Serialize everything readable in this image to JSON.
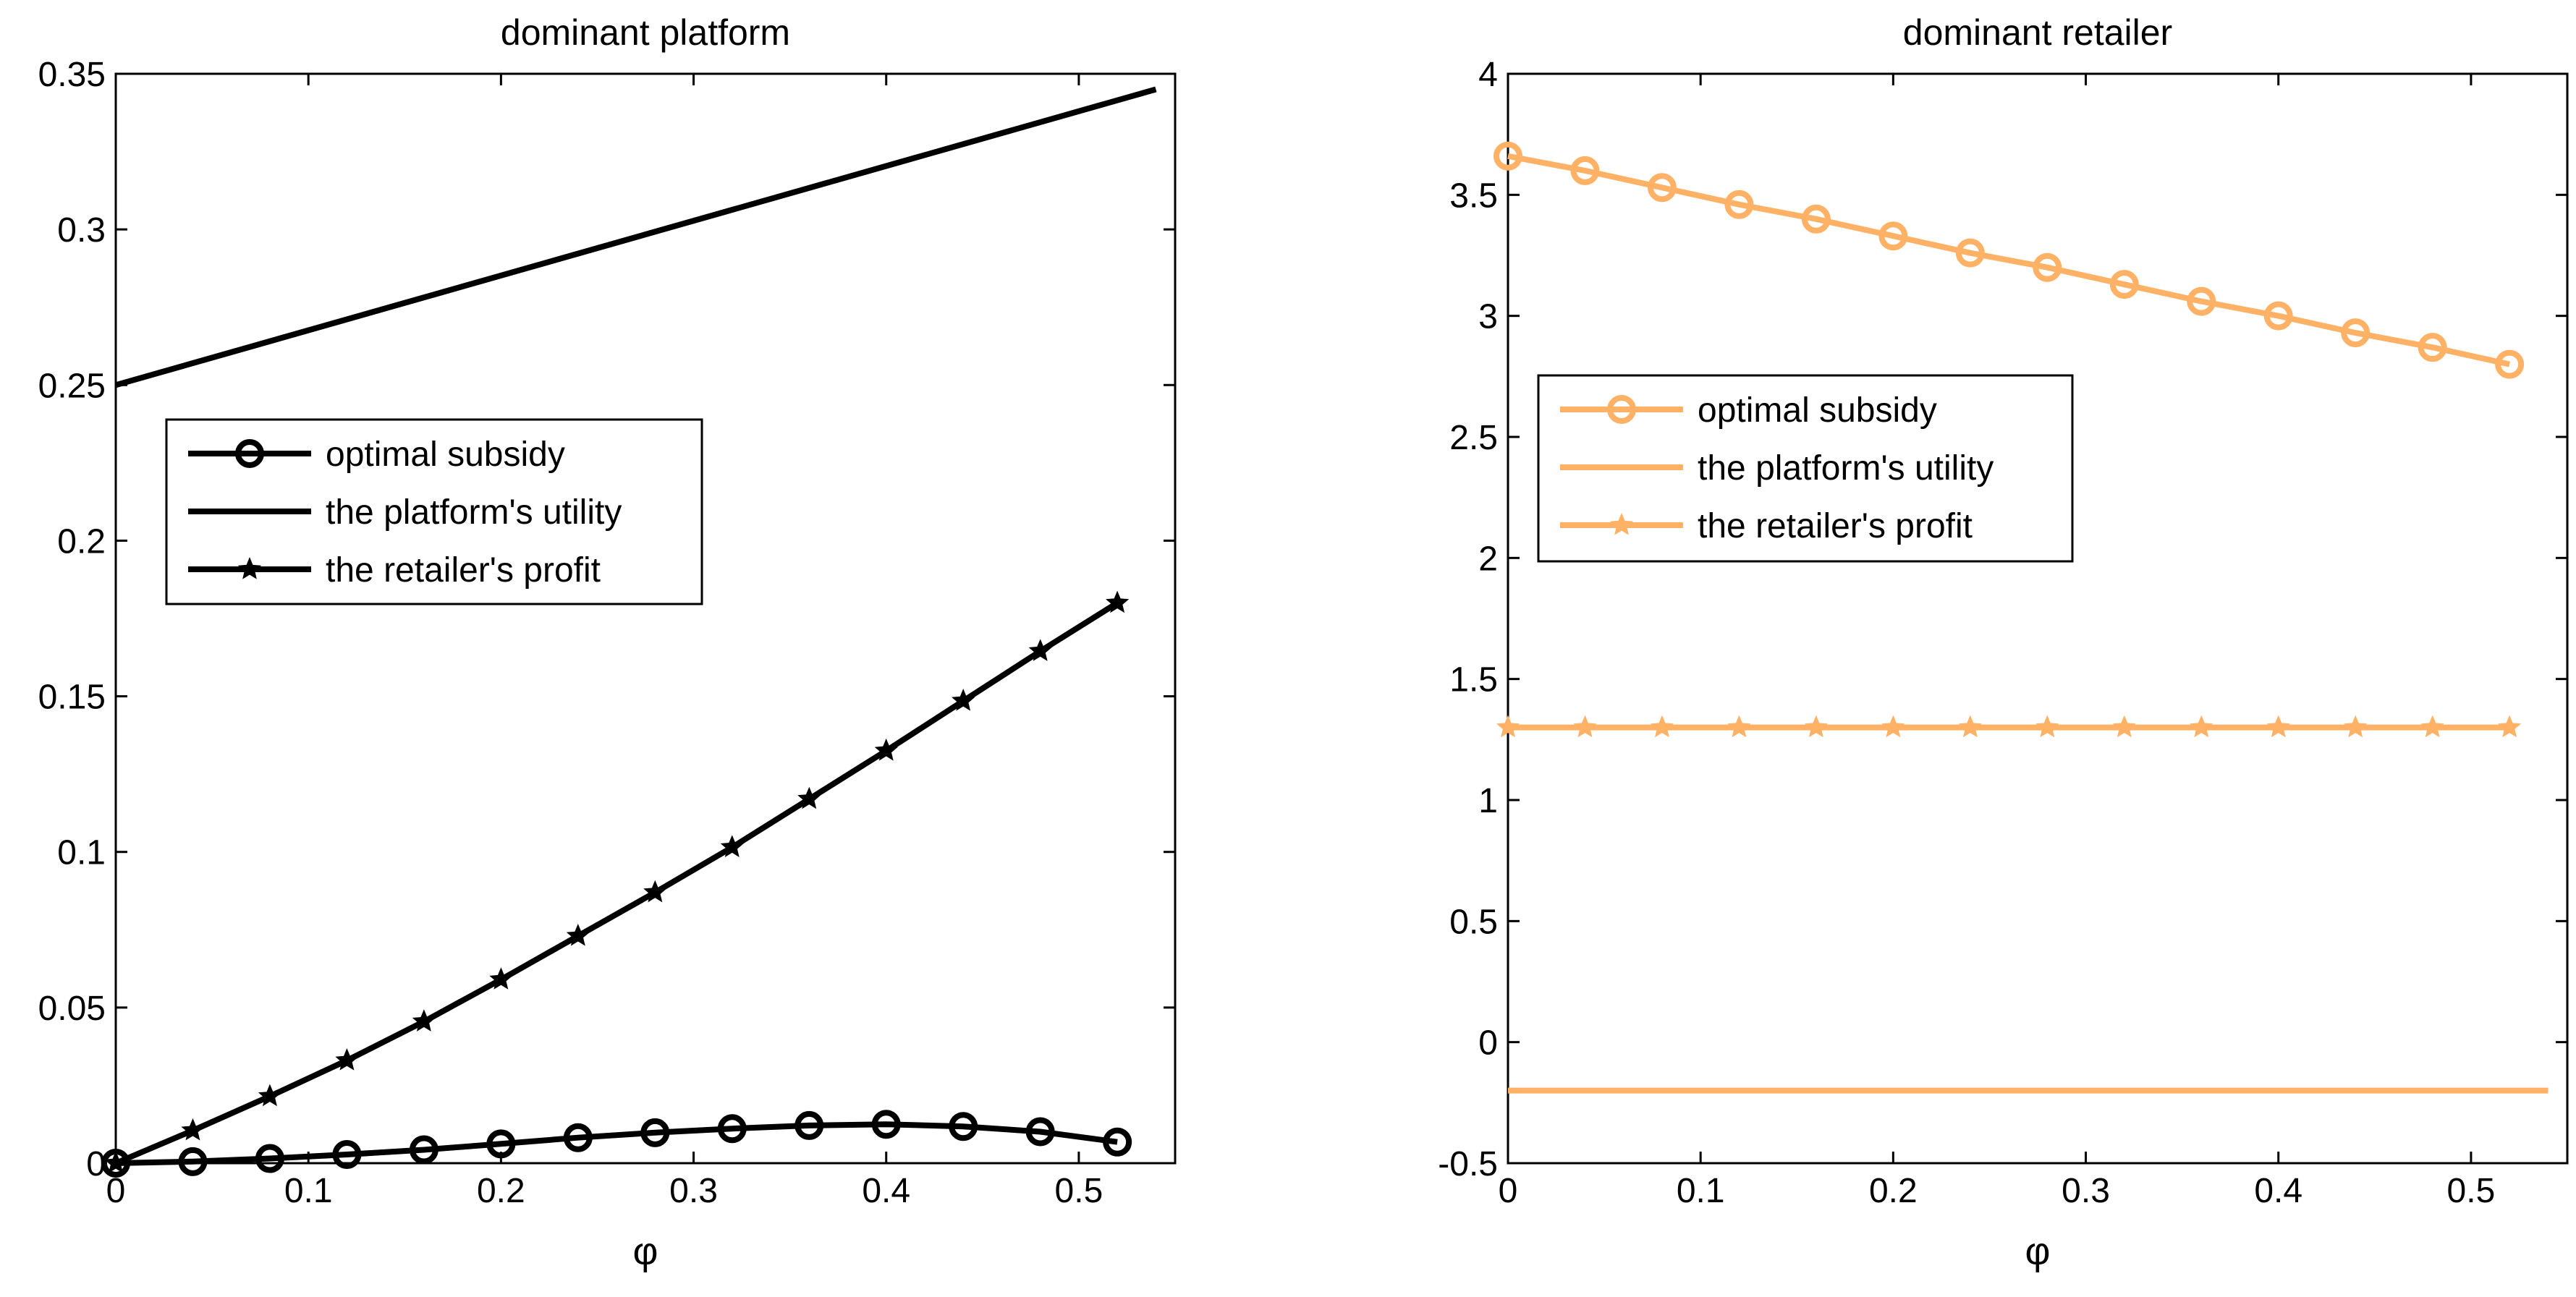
{
  "chart_data": [
    {
      "type": "line",
      "title": "dominant platform",
      "xlabel": "φ",
      "ylabel": "",
      "xlim": [
        0,
        0.55
      ],
      "ylim": [
        0,
        0.35
      ],
      "xticks": [
        0,
        0.1,
        0.2,
        0.3,
        0.4,
        0.5
      ],
      "yticks": [
        0,
        0.05,
        0.1,
        0.15,
        0.2,
        0.25,
        0.3,
        0.35
      ],
      "xtick_labels": [
        "0",
        "0.1",
        "0.2",
        "0.3",
        "0.4",
        "0.5"
      ],
      "ytick_labels": [
        "0",
        "0.05",
        "0.1",
        "0.15",
        "0.2",
        "0.25",
        "0.3",
        "0.35"
      ],
      "grid": false,
      "legend_position": "upper-left",
      "color": "#000000",
      "series": [
        {
          "name": "optimal subsidy",
          "marker": "circle",
          "x": [
            0,
            0.04,
            0.08,
            0.12,
            0.16,
            0.2,
            0.24,
            0.28,
            0.32,
            0.36,
            0.4,
            0.44,
            0.48,
            0.52
          ],
          "y": [
            0,
            0.0005,
            0.0015,
            0.0028,
            0.0043,
            0.0062,
            0.0082,
            0.0098,
            0.0111,
            0.0121,
            0.0125,
            0.0118,
            0.0101,
            0.0068
          ]
        },
        {
          "name": "the platform's utility",
          "marker": "none",
          "x": [
            0,
            0.54
          ],
          "y": [
            0.25,
            0.345
          ]
        },
        {
          "name": "the retailer's profit",
          "marker": "star",
          "x": [
            0,
            0.04,
            0.08,
            0.12,
            0.16,
            0.2,
            0.24,
            0.28,
            0.32,
            0.36,
            0.4,
            0.44,
            0.48,
            0.52
          ],
          "y": [
            0,
            0.0105,
            0.0215,
            0.033,
            0.0455,
            0.059,
            0.073,
            0.087,
            0.1015,
            0.117,
            0.1325,
            0.1485,
            0.1645,
            0.18
          ]
        }
      ]
    },
    {
      "type": "line",
      "title": "dominant retailer",
      "xlabel": "φ",
      "ylabel": "",
      "xlim": [
        0,
        0.55
      ],
      "ylim": [
        -0.5,
        4
      ],
      "xticks": [
        0,
        0.1,
        0.2,
        0.3,
        0.4,
        0.5
      ],
      "yticks": [
        -0.5,
        0,
        0.5,
        1,
        1.5,
        2,
        2.5,
        3,
        3.5,
        4
      ],
      "xtick_labels": [
        "0",
        "0.1",
        "0.2",
        "0.3",
        "0.4",
        "0.5"
      ],
      "ytick_labels": [
        "-0.5",
        "0",
        "0.5",
        "1",
        "1.5",
        "2",
        "2.5",
        "3",
        "3.5",
        "4"
      ],
      "grid": false,
      "legend_position": "upper-left",
      "color": "#FFB266",
      "series": [
        {
          "name": "optimal subsidy",
          "marker": "circle",
          "x": [
            0,
            0.04,
            0.08,
            0.12,
            0.16,
            0.2,
            0.24,
            0.28,
            0.32,
            0.36,
            0.4,
            0.44,
            0.48,
            0.52
          ],
          "y": [
            3.66,
            3.6,
            3.53,
            3.46,
            3.4,
            3.33,
            3.26,
            3.2,
            3.13,
            3.06,
            3.0,
            2.93,
            2.87,
            2.8
          ]
        },
        {
          "name": "the platform's utility",
          "marker": "none",
          "x": [
            0,
            0.54
          ],
          "y": [
            -0.2,
            -0.2
          ]
        },
        {
          "name": "the retailer's profit",
          "marker": "star",
          "x": [
            0,
            0.04,
            0.08,
            0.12,
            0.16,
            0.2,
            0.24,
            0.28,
            0.32,
            0.36,
            0.4,
            0.44,
            0.48,
            0.52
          ],
          "y": [
            1.3,
            1.3,
            1.3,
            1.3,
            1.3,
            1.3,
            1.3,
            1.3,
            1.3,
            1.3,
            1.3,
            1.3,
            1.3,
            1.3
          ]
        }
      ]
    }
  ]
}
